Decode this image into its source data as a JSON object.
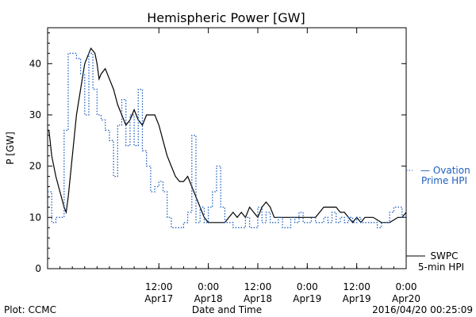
{
  "chart_data": {
    "type": "line",
    "title": "Hemispheric Power [GW]",
    "xlabel": "Date and Time",
    "ylabel": "P [GW]",
    "xlim": [
      "2016-04-16 09:00",
      "2016-04-20 00:00"
    ],
    "ylim": [
      0,
      47
    ],
    "yticks": [
      0,
      10,
      20,
      30,
      40
    ],
    "xticks": [
      {
        "x": "2016-04-17 12:00",
        "top": "12:00",
        "bottom": "Apr17"
      },
      {
        "x": "2016-04-18 00:00",
        "top": "0:00",
        "bottom": "Apr18"
      },
      {
        "x": "2016-04-18 12:00",
        "top": "12:00",
        "bottom": "Apr18"
      },
      {
        "x": "2016-04-19 00:00",
        "top": "0:00",
        "bottom": "Apr19"
      },
      {
        "x": "2016-04-19 12:00",
        "top": "12:00",
        "bottom": "Apr19"
      },
      {
        "x": "2016-04-20 00:00",
        "top": "0:00",
        "bottom": "Apr20"
      }
    ],
    "grid": false,
    "series": [
      {
        "name": "SWPC 5-min HPI",
        "label_lines": [
          "SWPC",
          "5-min HPI"
        ],
        "color": "#000000",
        "style": "solid",
        "points": [
          [
            "2016-04-16 09:00",
            27
          ],
          [
            "2016-04-16 09:20",
            27
          ],
          [
            "2016-04-16 10:00",
            22
          ],
          [
            "2016-04-16 11:00",
            18
          ],
          [
            "2016-04-16 12:00",
            15
          ],
          [
            "2016-04-16 13:00",
            12
          ],
          [
            "2016-04-16 13:30",
            11
          ],
          [
            "2016-04-16 14:00",
            14
          ],
          [
            "2016-04-16 15:00",
            22
          ],
          [
            "2016-04-16 16:00",
            30
          ],
          [
            "2016-04-16 17:00",
            35
          ],
          [
            "2016-04-16 18:00",
            40
          ],
          [
            "2016-04-16 19:00",
            42
          ],
          [
            "2016-04-16 19:30",
            43
          ],
          [
            "2016-04-16 20:30",
            42
          ],
          [
            "2016-04-16 21:00",
            40
          ],
          [
            "2016-04-16 21:30",
            37
          ],
          [
            "2016-04-16 22:00",
            38
          ],
          [
            "2016-04-16 23:00",
            39
          ],
          [
            "2016-04-17 00:00",
            37
          ],
          [
            "2016-04-17 01:00",
            35
          ],
          [
            "2016-04-17 02:00",
            32
          ],
          [
            "2016-04-17 03:00",
            30
          ],
          [
            "2016-04-17 04:00",
            28
          ],
          [
            "2016-04-17 05:00",
            29
          ],
          [
            "2016-04-17 06:00",
            31
          ],
          [
            "2016-04-17 07:00",
            29
          ],
          [
            "2016-04-17 08:00",
            28
          ],
          [
            "2016-04-17 09:00",
            30
          ],
          [
            "2016-04-17 11:00",
            30
          ],
          [
            "2016-04-17 12:00",
            28
          ],
          [
            "2016-04-17 13:00",
            25
          ],
          [
            "2016-04-17 14:00",
            22
          ],
          [
            "2016-04-17 15:00",
            20
          ],
          [
            "2016-04-17 16:00",
            18
          ],
          [
            "2016-04-17 17:00",
            17
          ],
          [
            "2016-04-17 18:00",
            17
          ],
          [
            "2016-04-17 19:00",
            18
          ],
          [
            "2016-04-17 20:00",
            16
          ],
          [
            "2016-04-17 21:00",
            14
          ],
          [
            "2016-04-17 22:00",
            12
          ],
          [
            "2016-04-17 23:00",
            10
          ],
          [
            "2016-04-18 00:00",
            9
          ],
          [
            "2016-04-18 04:00",
            9
          ],
          [
            "2016-04-18 05:00",
            10
          ],
          [
            "2016-04-18 06:00",
            11
          ],
          [
            "2016-04-18 07:00",
            10
          ],
          [
            "2016-04-18 08:00",
            11
          ],
          [
            "2016-04-18 09:00",
            10
          ],
          [
            "2016-04-18 10:00",
            12
          ],
          [
            "2016-04-18 11:00",
            11
          ],
          [
            "2016-04-18 12:00",
            10
          ],
          [
            "2016-04-18 13:00",
            12
          ],
          [
            "2016-04-18 14:00",
            13
          ],
          [
            "2016-04-18 15:00",
            12
          ],
          [
            "2016-04-18 16:00",
            10
          ],
          [
            "2016-04-18 17:00",
            10
          ],
          [
            "2016-04-18 18:00",
            10
          ],
          [
            "2016-04-18 20:00",
            10
          ],
          [
            "2016-04-18 22:00",
            10
          ],
          [
            "2016-04-19 00:00",
            10
          ],
          [
            "2016-04-19 02:00",
            10
          ],
          [
            "2016-04-19 03:00",
            11
          ],
          [
            "2016-04-19 04:00",
            12
          ],
          [
            "2016-04-19 05:00",
            12
          ],
          [
            "2016-04-19 06:00",
            12
          ],
          [
            "2016-04-19 07:00",
            12
          ],
          [
            "2016-04-19 08:00",
            11
          ],
          [
            "2016-04-19 09:00",
            11
          ],
          [
            "2016-04-19 10:00",
            10
          ],
          [
            "2016-04-19 11:00",
            9
          ],
          [
            "2016-04-19 12:00",
            10
          ],
          [
            "2016-04-19 13:00",
            9
          ],
          [
            "2016-04-19 14:00",
            10
          ],
          [
            "2016-04-19 16:00",
            10
          ],
          [
            "2016-04-19 18:00",
            9
          ],
          [
            "2016-04-19 20:00",
            9
          ],
          [
            "2016-04-19 22:00",
            10
          ],
          [
            "2016-04-19 23:00",
            10
          ],
          [
            "2016-04-20 00:00",
            11
          ]
        ]
      },
      {
        "name": "Ovation Prime HPI",
        "label_lines": [
          "— Ovation",
          "Prime HPI"
        ],
        "color": "#1f5fbf",
        "style": "dotted",
        "points": [
          [
            "2016-04-16 09:00",
            15
          ],
          [
            "2016-04-16 10:00",
            15
          ],
          [
            "2016-04-16 10:00",
            9
          ],
          [
            "2016-04-16 11:00",
            9
          ],
          [
            "2016-04-16 11:00",
            10
          ],
          [
            "2016-04-16 13:00",
            10
          ],
          [
            "2016-04-16 13:00",
            27
          ],
          [
            "2016-04-16 14:00",
            27
          ],
          [
            "2016-04-16 14:00",
            42
          ],
          [
            "2016-04-16 16:00",
            42
          ],
          [
            "2016-04-16 16:00",
            41
          ],
          [
            "2016-04-16 17:00",
            41
          ],
          [
            "2016-04-16 17:00",
            38
          ],
          [
            "2016-04-16 18:00",
            38
          ],
          [
            "2016-04-16 18:00",
            30
          ],
          [
            "2016-04-16 19:00",
            30
          ],
          [
            "2016-04-16 19:00",
            42
          ],
          [
            "2016-04-16 20:00",
            42
          ],
          [
            "2016-04-16 20:00",
            35
          ],
          [
            "2016-04-16 21:00",
            35
          ],
          [
            "2016-04-16 21:00",
            30
          ],
          [
            "2016-04-16 22:00",
            30
          ],
          [
            "2016-04-16 22:00",
            29
          ],
          [
            "2016-04-16 23:00",
            29
          ],
          [
            "2016-04-16 23:00",
            27
          ],
          [
            "2016-04-17 00:00",
            27
          ],
          [
            "2016-04-17 00:00",
            25
          ],
          [
            "2016-04-17 01:00",
            25
          ],
          [
            "2016-04-17 01:00",
            18
          ],
          [
            "2016-04-17 02:00",
            18
          ],
          [
            "2016-04-17 02:00",
            28
          ],
          [
            "2016-04-17 03:00",
            28
          ],
          [
            "2016-04-17 03:00",
            33
          ],
          [
            "2016-04-17 04:00",
            33
          ],
          [
            "2016-04-17 04:00",
            24
          ],
          [
            "2016-04-17 05:00",
            24
          ],
          [
            "2016-04-17 05:00",
            30
          ],
          [
            "2016-04-17 06:00",
            30
          ],
          [
            "2016-04-17 06:00",
            24
          ],
          [
            "2016-04-17 07:00",
            24
          ],
          [
            "2016-04-17 07:00",
            35
          ],
          [
            "2016-04-17 08:00",
            35
          ],
          [
            "2016-04-17 08:00",
            23
          ],
          [
            "2016-04-17 09:00",
            23
          ],
          [
            "2016-04-17 09:00",
            20
          ],
          [
            "2016-04-17 10:00",
            20
          ],
          [
            "2016-04-17 10:00",
            15
          ],
          [
            "2016-04-17 11:00",
            15
          ],
          [
            "2016-04-17 11:00",
            16
          ],
          [
            "2016-04-17 12:00",
            16
          ],
          [
            "2016-04-17 12:00",
            17
          ],
          [
            "2016-04-17 13:00",
            17
          ],
          [
            "2016-04-17 13:00",
            15
          ],
          [
            "2016-04-17 14:00",
            15
          ],
          [
            "2016-04-17 14:00",
            10
          ],
          [
            "2016-04-17 15:00",
            10
          ],
          [
            "2016-04-17 15:00",
            8
          ],
          [
            "2016-04-17 18:00",
            8
          ],
          [
            "2016-04-17 18:00",
            9
          ],
          [
            "2016-04-17 19:00",
            9
          ],
          [
            "2016-04-17 19:00",
            11
          ],
          [
            "2016-04-17 20:00",
            11
          ],
          [
            "2016-04-17 20:00",
            26
          ],
          [
            "2016-04-17 21:00",
            26
          ],
          [
            "2016-04-17 21:00",
            9
          ],
          [
            "2016-04-17 22:00",
            9
          ],
          [
            "2016-04-17 22:00",
            12
          ],
          [
            "2016-04-17 23:00",
            12
          ],
          [
            "2016-04-17 23:00",
            9
          ],
          [
            "2016-04-18 00:00",
            9
          ],
          [
            "2016-04-18 00:00",
            12
          ],
          [
            "2016-04-18 01:00",
            12
          ],
          [
            "2016-04-18 01:00",
            15
          ],
          [
            "2016-04-18 02:00",
            15
          ],
          [
            "2016-04-18 02:00",
            20
          ],
          [
            "2016-04-18 03:00",
            20
          ],
          [
            "2016-04-18 03:00",
            12
          ],
          [
            "2016-04-18 04:00",
            12
          ],
          [
            "2016-04-18 04:00",
            9
          ],
          [
            "2016-04-18 06:00",
            9
          ],
          [
            "2016-04-18 06:00",
            8
          ],
          [
            "2016-04-18 09:00",
            8
          ],
          [
            "2016-04-18 09:00",
            10
          ],
          [
            "2016-04-18 10:00",
            10
          ],
          [
            "2016-04-18 10:00",
            8
          ],
          [
            "2016-04-18 12:00",
            8
          ],
          [
            "2016-04-18 12:00",
            12
          ],
          [
            "2016-04-18 13:00",
            12
          ],
          [
            "2016-04-18 13:00",
            9
          ],
          [
            "2016-04-18 14:00",
            9
          ],
          [
            "2016-04-18 14:00",
            11
          ],
          [
            "2016-04-18 15:00",
            11
          ],
          [
            "2016-04-18 15:00",
            9
          ],
          [
            "2016-04-18 17:00",
            9
          ],
          [
            "2016-04-18 17:00",
            10
          ],
          [
            "2016-04-18 18:00",
            10
          ],
          [
            "2016-04-18 18:00",
            8
          ],
          [
            "2016-04-18 20:00",
            8
          ],
          [
            "2016-04-18 20:00",
            10
          ],
          [
            "2016-04-18 21:00",
            10
          ],
          [
            "2016-04-18 21:00",
            9
          ],
          [
            "2016-04-18 22:00",
            9
          ],
          [
            "2016-04-18 22:00",
            11
          ],
          [
            "2016-04-18 23:00",
            11
          ],
          [
            "2016-04-18 23:00",
            9
          ],
          [
            "2016-04-19 01:00",
            9
          ],
          [
            "2016-04-19 01:00",
            10
          ],
          [
            "2016-04-19 02:00",
            10
          ],
          [
            "2016-04-19 02:00",
            9
          ],
          [
            "2016-04-19 04:00",
            9
          ],
          [
            "2016-04-19 04:00",
            10
          ],
          [
            "2016-04-19 05:00",
            10
          ],
          [
            "2016-04-19 05:00",
            9
          ],
          [
            "2016-04-19 06:00",
            9
          ],
          [
            "2016-04-19 06:00",
            11
          ],
          [
            "2016-04-19 07:00",
            11
          ],
          [
            "2016-04-19 07:00",
            9
          ],
          [
            "2016-04-19 08:00",
            9
          ],
          [
            "2016-04-19 08:00",
            10
          ],
          [
            "2016-04-19 09:00",
            10
          ],
          [
            "2016-04-19 09:00",
            9
          ],
          [
            "2016-04-19 10:00",
            9
          ],
          [
            "2016-04-19 10:00",
            10
          ],
          [
            "2016-04-19 11:00",
            10
          ],
          [
            "2016-04-19 11:00",
            9
          ],
          [
            "2016-04-19 12:00",
            9
          ],
          [
            "2016-04-19 12:00",
            10
          ],
          [
            "2016-04-19 13:00",
            10
          ],
          [
            "2016-04-19 13:00",
            9
          ],
          [
            "2016-04-19 17:00",
            9
          ],
          [
            "2016-04-19 17:00",
            8
          ],
          [
            "2016-04-19 18:00",
            8
          ],
          [
            "2016-04-19 18:00",
            9
          ],
          [
            "2016-04-19 20:00",
            9
          ],
          [
            "2016-04-19 20:00",
            11
          ],
          [
            "2016-04-19 21:00",
            11
          ],
          [
            "2016-04-19 21:00",
            12
          ],
          [
            "2016-04-19 23:00",
            12
          ],
          [
            "2016-04-19 23:00",
            10
          ],
          [
            "2016-04-20 00:00",
            10
          ]
        ]
      }
    ],
    "legend": "right"
  },
  "footer": {
    "plot_label": "Plot: CCMC",
    "timestamp": "2016/04/20 00:25:09"
  }
}
